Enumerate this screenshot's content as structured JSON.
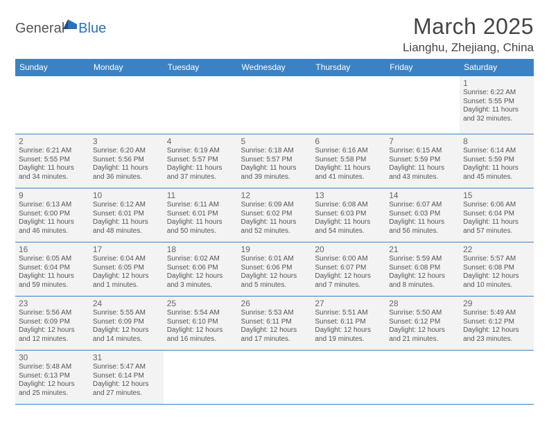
{
  "logo": {
    "part1": "General",
    "part2": "Blue"
  },
  "title": "March 2025",
  "location": "Lianghu, Zhejiang, China",
  "colors": {
    "header_bg": "#3b82c4",
    "header_text": "#ffffff",
    "cell_bg": "#f3f3f3",
    "border": "#3b82c4",
    "text": "#555555",
    "logo_blue": "#2a72b5"
  },
  "weekdays": [
    "Sunday",
    "Monday",
    "Tuesday",
    "Wednesday",
    "Thursday",
    "Friday",
    "Saturday"
  ],
  "days": [
    {
      "n": "1",
      "sunrise": "6:22 AM",
      "sunset": "5:55 PM",
      "dh": "11",
      "dm": "32"
    },
    {
      "n": "2",
      "sunrise": "6:21 AM",
      "sunset": "5:55 PM",
      "dh": "11",
      "dm": "34"
    },
    {
      "n": "3",
      "sunrise": "6:20 AM",
      "sunset": "5:56 PM",
      "dh": "11",
      "dm": "36"
    },
    {
      "n": "4",
      "sunrise": "6:19 AM",
      "sunset": "5:57 PM",
      "dh": "11",
      "dm": "37"
    },
    {
      "n": "5",
      "sunrise": "6:18 AM",
      "sunset": "5:57 PM",
      "dh": "11",
      "dm": "39"
    },
    {
      "n": "6",
      "sunrise": "6:16 AM",
      "sunset": "5:58 PM",
      "dh": "11",
      "dm": "41"
    },
    {
      "n": "7",
      "sunrise": "6:15 AM",
      "sunset": "5:59 PM",
      "dh": "11",
      "dm": "43"
    },
    {
      "n": "8",
      "sunrise": "6:14 AM",
      "sunset": "5:59 PM",
      "dh": "11",
      "dm": "45"
    },
    {
      "n": "9",
      "sunrise": "6:13 AM",
      "sunset": "6:00 PM",
      "dh": "11",
      "dm": "46"
    },
    {
      "n": "10",
      "sunrise": "6:12 AM",
      "sunset": "6:01 PM",
      "dh": "11",
      "dm": "48"
    },
    {
      "n": "11",
      "sunrise": "6:11 AM",
      "sunset": "6:01 PM",
      "dh": "11",
      "dm": "50"
    },
    {
      "n": "12",
      "sunrise": "6:09 AM",
      "sunset": "6:02 PM",
      "dh": "11",
      "dm": "52"
    },
    {
      "n": "13",
      "sunrise": "6:08 AM",
      "sunset": "6:03 PM",
      "dh": "11",
      "dm": "54"
    },
    {
      "n": "14",
      "sunrise": "6:07 AM",
      "sunset": "6:03 PM",
      "dh": "11",
      "dm": "56"
    },
    {
      "n": "15",
      "sunrise": "6:06 AM",
      "sunset": "6:04 PM",
      "dh": "11",
      "dm": "57"
    },
    {
      "n": "16",
      "sunrise": "6:05 AM",
      "sunset": "6:04 PM",
      "dh": "11",
      "dm": "59"
    },
    {
      "n": "17",
      "sunrise": "6:04 AM",
      "sunset": "6:05 PM",
      "dh": "12",
      "dm": "1"
    },
    {
      "n": "18",
      "sunrise": "6:02 AM",
      "sunset": "6:06 PM",
      "dh": "12",
      "dm": "3"
    },
    {
      "n": "19",
      "sunrise": "6:01 AM",
      "sunset": "6:06 PM",
      "dh": "12",
      "dm": "5"
    },
    {
      "n": "20",
      "sunrise": "6:00 AM",
      "sunset": "6:07 PM",
      "dh": "12",
      "dm": "7"
    },
    {
      "n": "21",
      "sunrise": "5:59 AM",
      "sunset": "6:08 PM",
      "dh": "12",
      "dm": "8"
    },
    {
      "n": "22",
      "sunrise": "5:57 AM",
      "sunset": "6:08 PM",
      "dh": "12",
      "dm": "10"
    },
    {
      "n": "23",
      "sunrise": "5:56 AM",
      "sunset": "6:09 PM",
      "dh": "12",
      "dm": "12"
    },
    {
      "n": "24",
      "sunrise": "5:55 AM",
      "sunset": "6:09 PM",
      "dh": "12",
      "dm": "14"
    },
    {
      "n": "25",
      "sunrise": "5:54 AM",
      "sunset": "6:10 PM",
      "dh": "12",
      "dm": "16"
    },
    {
      "n": "26",
      "sunrise": "5:53 AM",
      "sunset": "6:11 PM",
      "dh": "12",
      "dm": "17"
    },
    {
      "n": "27",
      "sunrise": "5:51 AM",
      "sunset": "6:11 PM",
      "dh": "12",
      "dm": "19"
    },
    {
      "n": "28",
      "sunrise": "5:50 AM",
      "sunset": "6:12 PM",
      "dh": "12",
      "dm": "21"
    },
    {
      "n": "29",
      "sunrise": "5:49 AM",
      "sunset": "6:12 PM",
      "dh": "12",
      "dm": "23"
    },
    {
      "n": "30",
      "sunrise": "5:48 AM",
      "sunset": "6:13 PM",
      "dh": "12",
      "dm": "25"
    },
    {
      "n": "31",
      "sunrise": "5:47 AM",
      "sunset": "6:14 PM",
      "dh": "12",
      "dm": "27"
    }
  ],
  "labels": {
    "sunrise": "Sunrise:",
    "sunset": "Sunset:",
    "daylight": "Daylight:",
    "hours_word": "hours",
    "and_word": "and",
    "minutes_word": "minutes."
  },
  "start_weekday_index": 6
}
